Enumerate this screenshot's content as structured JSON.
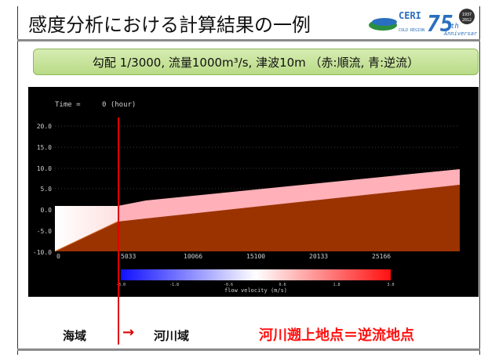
{
  "slide": {
    "title": "感度分析における計算結果の一例",
    "subtitle": "勾配 1/3000, 流量1000m³/s, 津波10m （赤:順流, 青:逆流）",
    "logo": {
      "brand": "CERI",
      "brand_sub": "COLD REGION",
      "anniversary_number": "75",
      "anniversary_suffix": "th",
      "anniversary_word": "Anniversary",
      "years": [
        "1937",
        "2012"
      ],
      "accent": "#2a6fbf"
    }
  },
  "simulation": {
    "time_label": "Time =",
    "time_value": "0 (hour)",
    "y_ticks": [
      "20.0",
      "15.0",
      "10.0",
      "5.0",
      "0.0",
      "-5.0",
      "-10.0"
    ],
    "x_ticks": [
      "0",
      "5033",
      "10066",
      "15100",
      "20133",
      "25166"
    ],
    "colorbar_ticks": [
      "-3.0",
      "-1.8",
      "-0.6",
      "0.6",
      "1.8",
      "3.0"
    ],
    "colorbar_label": "flow velocity (m/s)",
    "colors": {
      "bed": "#9a3300",
      "water": "#ffb0b8",
      "marker": "#e00000"
    }
  },
  "annotations": {
    "sea": "海域",
    "arrow": "→",
    "river": "河川域",
    "upstream_point": "河川遡上地点＝逆流地点"
  }
}
